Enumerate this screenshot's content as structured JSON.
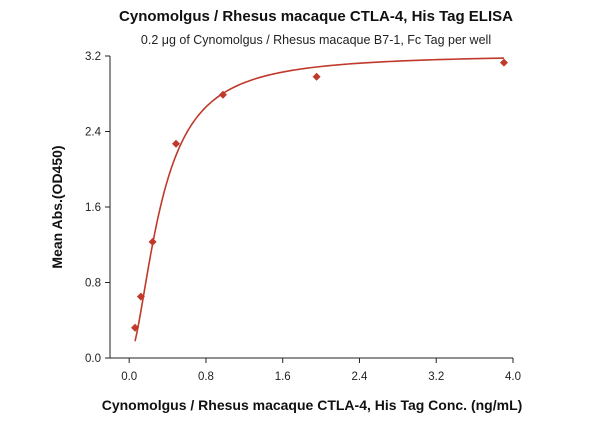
{
  "chart_data": {
    "type": "scatter",
    "title": "Cynomolgus / Rhesus macaque CTLA-4, His Tag ELISA",
    "subtitle": "0.2 μg of Cynomolgus / Rhesus macaque B7-1, Fc Tag per well",
    "xlabel": "Cynomolgus / Rhesus macaque CTLA-4, His Tag Conc. (ng/mL)",
    "ylabel": "Mean Abs.(OD450)",
    "xlim": [
      -0.2,
      4.0
    ],
    "ylim": [
      0.0,
      3.2
    ],
    "x_ticks": [
      0.0,
      0.8,
      1.6,
      2.4,
      3.2,
      4.0
    ],
    "y_ticks": [
      0.0,
      0.8,
      1.6,
      2.4,
      3.2
    ],
    "x_tick_labels": [
      "0.0",
      "0.8",
      "1.6",
      "2.4",
      "3.2",
      "4.0"
    ],
    "y_tick_labels": [
      "0.0",
      "0.8",
      "1.6",
      "2.4",
      "3.2"
    ],
    "grid": false,
    "legend": "none",
    "series": [
      {
        "marker": "diamond",
        "color": "#c0392b",
        "x": [
          0.061,
          0.122,
          0.244,
          0.488,
          0.977,
          1.953,
          3.906
        ],
        "y": [
          0.32,
          0.65,
          1.23,
          2.27,
          2.79,
          2.98,
          3.13
        ],
        "fit": "4-parameter logistic curve"
      }
    ]
  }
}
